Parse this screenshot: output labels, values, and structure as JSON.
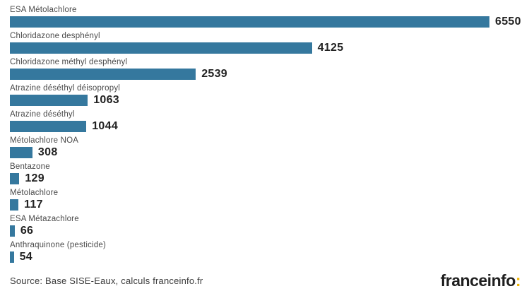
{
  "chart_data": {
    "type": "bar",
    "orientation": "horizontal",
    "title": "",
    "xlabel": "",
    "ylabel": "",
    "grid": false,
    "value_labels_position": "end-of-bar",
    "categories": [
      "ESA Métolachlore",
      "Chloridazone desphényl",
      "Chloridazone méthyl desphényl",
      "Atrazine déséthyl déisopropyl",
      "Atrazine déséthyl",
      "Métolachlore NOA",
      "Bentazone",
      "Métolachlore",
      "ESA Métazachlore",
      "Anthraquinone (pesticide)"
    ],
    "values": [
      6550,
      4125,
      2539,
      1063,
      1044,
      308,
      129,
      117,
      66,
      54
    ],
    "xlim": [
      0,
      6550
    ],
    "bar_color": "#35789e"
  },
  "colors": {
    "bar": "#35789e",
    "category_label_text": "#4a4a4a",
    "value_text": "#222222",
    "brand_text": "#1f1f1f",
    "brand_colon": "#f0b400",
    "background": "#ffffff"
  },
  "footer": {
    "source": "Source: Base SISE-Eaux, calculs franceinfo.fr",
    "brand_name": "franceinfo",
    "brand_colon": ":"
  }
}
